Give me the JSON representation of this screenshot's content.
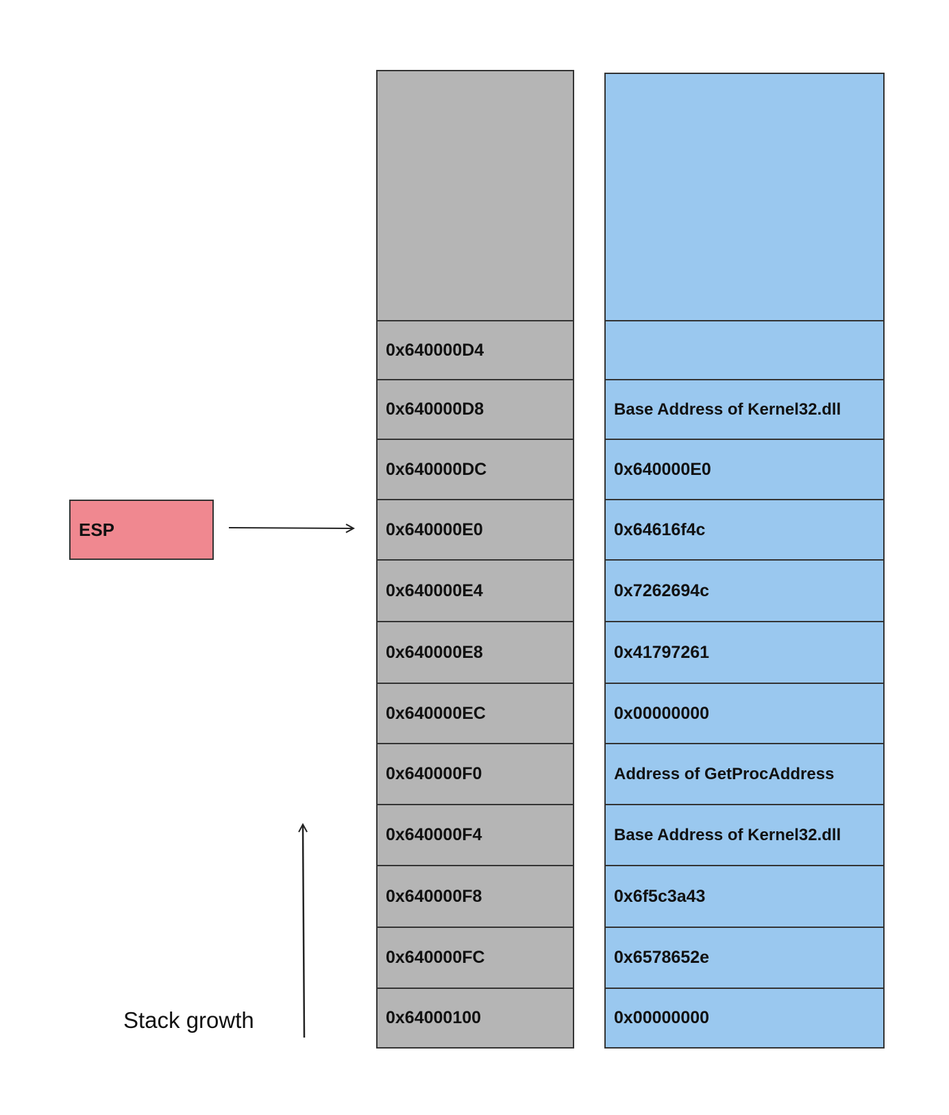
{
  "esp": {
    "label": "ESP"
  },
  "stack_growth": {
    "label": "Stack growth"
  },
  "stack": {
    "rows": [
      {
        "address": "0x640000D4",
        "value": ""
      },
      {
        "address": "0x640000D8",
        "value": "Base Address of Kernel32.dll"
      },
      {
        "address": "0x640000DC",
        "value": "0x640000E0"
      },
      {
        "address": "0x640000E0",
        "value": "0x64616f4c"
      },
      {
        "address": "0x640000E4",
        "value": "0x7262694c"
      },
      {
        "address": "0x640000E8",
        "value": "0x41797261"
      },
      {
        "address": "0x640000EC",
        "value": "0x00000000"
      },
      {
        "address": "0x640000F0",
        "value": "Address of GetProcAddress"
      },
      {
        "address": "0x640000F4",
        "value": "Base Address of Kernel32.dll"
      },
      {
        "address": "0x640000F8",
        "value": "0x6f5c3a43"
      },
      {
        "address": "0x640000FC",
        "value": "0x6578652e"
      },
      {
        "address": "0x64000100",
        "value": "0x00000000"
      }
    ]
  },
  "colors": {
    "address_fill": "#b5b5b5",
    "value_fill": "#9ac8ef",
    "esp_fill": "#f08890",
    "border": "#333333"
  }
}
